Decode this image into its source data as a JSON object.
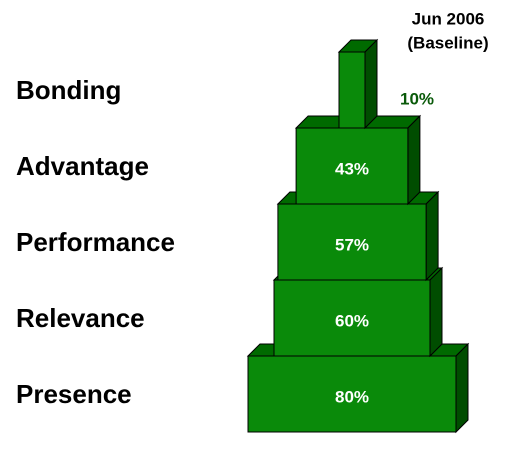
{
  "chart_data": {
    "type": "pyramid",
    "title": "Jun 2006",
    "subtitle": "(Baseline)",
    "categories": [
      "Bonding",
      "Advantage",
      "Performance",
      "Relevance",
      "Presence"
    ],
    "values": [
      10,
      43,
      57,
      60,
      80
    ],
    "value_labels": [
      "10%",
      "43%",
      "57%",
      "60%",
      "80%"
    ],
    "color": "#0a8a0a"
  }
}
